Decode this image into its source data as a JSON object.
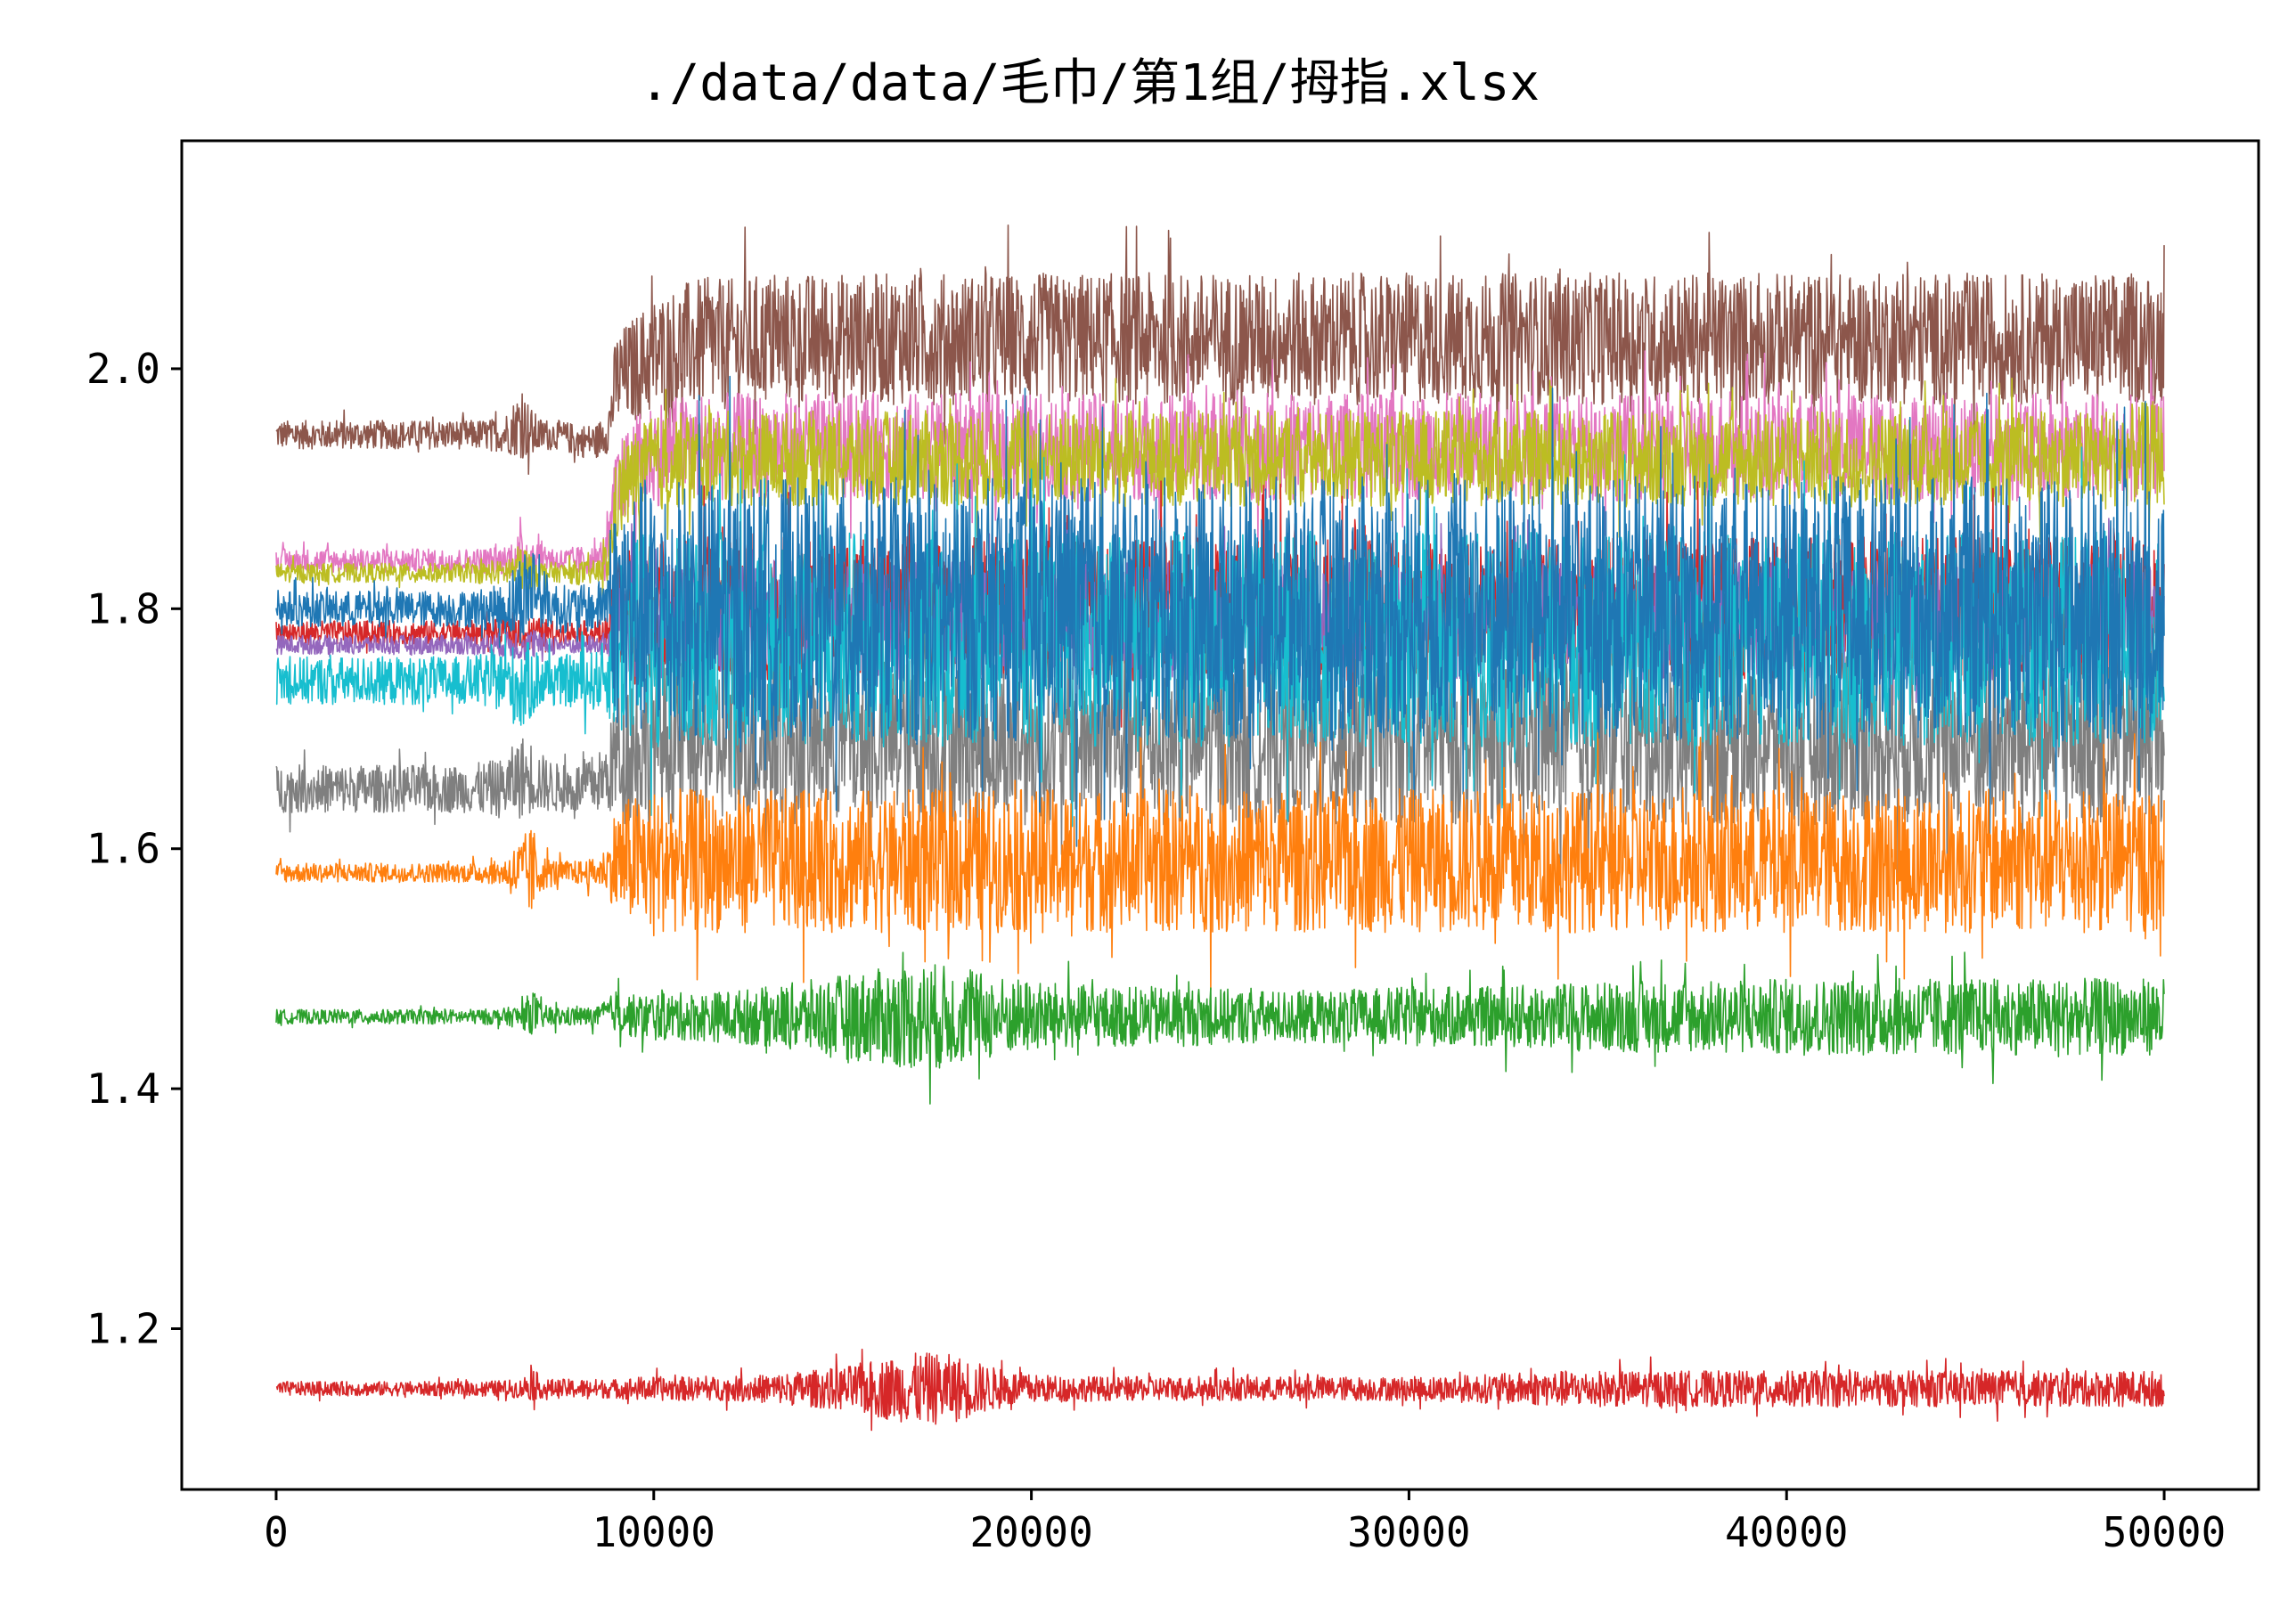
{
  "chart_data": {
    "type": "line",
    "title": "./data/data/毛巾/第1组/拇指.xlsx",
    "xlabel": "",
    "ylabel": "",
    "xlim": [
      -2500,
      52500
    ],
    "ylim": [
      1.066,
      2.19
    ],
    "xticks": [
      0,
      10000,
      20000,
      30000,
      40000,
      50000
    ],
    "xtick_labels": [
      "0",
      "10000",
      "20000",
      "30000",
      "40000",
      "50000"
    ],
    "yticks": [
      1.2,
      1.4,
      1.6,
      1.8,
      2.0
    ],
    "ytick_labels": [
      "1.2",
      "1.4",
      "1.6",
      "1.8",
      "2.0"
    ],
    "grid": false,
    "legend": "none",
    "x": [
      0,
      2500,
      5000,
      6000,
      6500,
      6800,
      7000,
      7500,
      8000,
      8500,
      8800,
      9000,
      9500,
      10000,
      11000,
      12000,
      13000,
      14000,
      15000,
      16000,
      17000,
      17500,
      18000,
      19000,
      20000,
      22000,
      24000,
      26000,
      28000,
      30000,
      32000,
      34000,
      36000,
      38000,
      40000,
      42000,
      44000,
      46000,
      48000,
      50000
    ],
    "series": [
      {
        "color": "#8c564b",
        "center": [
          1.945,
          1.945,
          1.945,
          1.945,
          1.955,
          1.945,
          1.945,
          1.945,
          1.94,
          1.94,
          1.95,
          1.99,
          2.0,
          2.01,
          2.02,
          2.02,
          2.025,
          2.025,
          2.025,
          2.025,
          2.025,
          2.025,
          2.025,
          2.025,
          2.025,
          2.025,
          2.025,
          2.025,
          2.025,
          2.025,
          2.025,
          2.025,
          2.025,
          2.025,
          2.025,
          2.025,
          2.025,
          2.025,
          2.025,
          2.025
        ],
        "amp": [
          0.012,
          0.012,
          0.012,
          0.014,
          0.03,
          0.02,
          0.014,
          0.012,
          0.014,
          0.014,
          0.02,
          0.04,
          0.045,
          0.05,
          0.055,
          0.055,
          0.055,
          0.055,
          0.055,
          0.055,
          0.055,
          0.055,
          0.055,
          0.055,
          0.055,
          0.055,
          0.055,
          0.055,
          0.055,
          0.055,
          0.055,
          0.055,
          0.055,
          0.055,
          0.055,
          0.055,
          0.055,
          0.055,
          0.055,
          0.055
        ]
      },
      {
        "color": "#e377c2",
        "center": [
          1.84,
          1.84,
          1.84,
          1.84,
          1.845,
          1.845,
          1.845,
          1.84,
          1.84,
          1.84,
          1.85,
          1.9,
          1.92,
          1.93,
          1.935,
          1.935,
          1.935,
          1.935,
          1.935,
          1.935,
          1.935,
          1.935,
          1.935,
          1.935,
          1.935,
          1.935,
          1.935,
          1.935,
          1.935,
          1.935,
          1.935,
          1.935,
          1.935,
          1.935,
          1.935,
          1.935,
          1.935,
          1.935,
          1.935,
          1.935
        ],
        "amp": [
          0.01,
          0.01,
          0.01,
          0.012,
          0.02,
          0.016,
          0.012,
          0.01,
          0.012,
          0.012,
          0.02,
          0.035,
          0.04,
          0.045,
          0.045,
          0.045,
          0.045,
          0.045,
          0.045,
          0.045,
          0.045,
          0.045,
          0.045,
          0.045,
          0.045,
          0.045,
          0.045,
          0.045,
          0.045,
          0.045,
          0.045,
          0.045,
          0.045,
          0.045,
          0.045,
          0.045,
          0.045,
          0.045,
          0.045,
          0.045
        ]
      },
      {
        "color": "#bcbd22",
        "center": [
          1.83,
          1.83,
          1.83,
          1.83,
          1.835,
          1.83,
          1.83,
          1.83,
          1.83,
          1.83,
          1.84,
          1.89,
          1.91,
          1.92,
          1.925,
          1.925,
          1.925,
          1.925,
          1.925,
          1.925,
          1.925,
          1.925,
          1.925,
          1.925,
          1.925,
          1.925,
          1.925,
          1.925,
          1.925,
          1.925,
          1.925,
          1.925,
          1.925,
          1.925,
          1.925,
          1.925,
          1.925,
          1.925,
          1.925,
          1.93
        ],
        "amp": [
          0.008,
          0.008,
          0.008,
          0.01,
          0.02,
          0.016,
          0.01,
          0.008,
          0.01,
          0.01,
          0.02,
          0.035,
          0.04,
          0.04,
          0.04,
          0.04,
          0.04,
          0.04,
          0.04,
          0.04,
          0.04,
          0.04,
          0.04,
          0.04,
          0.04,
          0.04,
          0.04,
          0.04,
          0.04,
          0.04,
          0.04,
          0.04,
          0.04,
          0.04,
          0.04,
          0.04,
          0.04,
          0.04,
          0.04,
          0.045
        ]
      },
      {
        "color": "#d62728",
        "center": [
          1.78,
          1.78,
          1.78,
          1.78,
          1.78,
          1.78,
          1.78,
          1.78,
          1.78,
          1.78,
          1.78,
          1.8,
          1.8,
          1.8,
          1.8,
          1.8,
          1.8,
          1.8,
          1.8,
          1.8,
          1.8,
          1.8,
          1.8,
          1.8,
          1.8,
          1.8,
          1.8,
          1.8,
          1.8,
          1.8,
          1.8,
          1.8,
          1.8,
          1.8,
          1.8,
          1.8,
          1.8,
          1.8,
          1.8,
          1.8
        ],
        "amp": [
          0.01,
          0.01,
          0.01,
          0.012,
          0.015,
          0.014,
          0.012,
          0.01,
          0.01,
          0.01,
          0.015,
          0.05,
          0.06,
          0.06,
          0.06,
          0.06,
          0.06,
          0.06,
          0.06,
          0.06,
          0.06,
          0.06,
          0.06,
          0.06,
          0.06,
          0.06,
          0.06,
          0.06,
          0.06,
          0.06,
          0.06,
          0.06,
          0.06,
          0.06,
          0.06,
          0.06,
          0.06,
          0.06,
          0.06,
          0.06
        ]
      },
      {
        "color": "#9467bd",
        "center": [
          1.77,
          1.77,
          1.77,
          1.77,
          1.77,
          1.77,
          1.77,
          1.77,
          1.77,
          1.77,
          1.77,
          1.79,
          1.79,
          1.79,
          1.79,
          1.79,
          1.79,
          1.79,
          1.79,
          1.79,
          1.79,
          1.79,
          1.79,
          1.79,
          1.79,
          1.79,
          1.79,
          1.79,
          1.79,
          1.79,
          1.79,
          1.79,
          1.79,
          1.79,
          1.79,
          1.79,
          1.79,
          1.79,
          1.79,
          1.79
        ],
        "amp": [
          0.008,
          0.008,
          0.008,
          0.01,
          0.014,
          0.012,
          0.01,
          0.008,
          0.008,
          0.008,
          0.012,
          0.04,
          0.05,
          0.05,
          0.05,
          0.05,
          0.05,
          0.05,
          0.05,
          0.05,
          0.05,
          0.05,
          0.05,
          0.05,
          0.05,
          0.05,
          0.05,
          0.05,
          0.05,
          0.05,
          0.05,
          0.05,
          0.05,
          0.05,
          0.05,
          0.05,
          0.05,
          0.05,
          0.05,
          0.05
        ]
      },
      {
        "color": "#7f7f7f",
        "center": [
          1.65,
          1.65,
          1.65,
          1.65,
          1.66,
          1.66,
          1.655,
          1.65,
          1.65,
          1.655,
          1.66,
          1.68,
          1.69,
          1.69,
          1.69,
          1.69,
          1.69,
          1.69,
          1.69,
          1.69,
          1.69,
          1.69,
          1.69,
          1.69,
          1.69,
          1.69,
          1.69,
          1.69,
          1.69,
          1.69,
          1.69,
          1.69,
          1.69,
          1.69,
          1.69,
          1.69,
          1.69,
          1.69,
          1.69,
          1.69
        ],
        "amp": [
          0.02,
          0.02,
          0.02,
          0.025,
          0.035,
          0.03,
          0.025,
          0.02,
          0.022,
          0.025,
          0.03,
          0.06,
          0.07,
          0.07,
          0.07,
          0.07,
          0.07,
          0.07,
          0.07,
          0.07,
          0.07,
          0.07,
          0.07,
          0.07,
          0.07,
          0.07,
          0.07,
          0.07,
          0.07,
          0.07,
          0.07,
          0.07,
          0.07,
          0.07,
          0.07,
          0.07,
          0.07,
          0.07,
          0.07,
          0.07
        ]
      },
      {
        "color": "#17becf",
        "center": [
          1.74,
          1.74,
          1.74,
          1.74,
          1.735,
          1.74,
          1.74,
          1.74,
          1.74,
          1.74,
          1.745,
          1.77,
          1.775,
          1.775,
          1.775,
          1.775,
          1.775,
          1.775,
          1.775,
          1.775,
          1.775,
          1.775,
          1.775,
          1.775,
          1.775,
          1.775,
          1.775,
          1.775,
          1.775,
          1.775,
          1.775,
          1.775,
          1.775,
          1.775,
          1.775,
          1.775,
          1.775,
          1.775,
          1.775,
          1.775
        ],
        "amp": [
          0.02,
          0.02,
          0.02,
          0.025,
          0.04,
          0.03,
          0.025,
          0.02,
          0.025,
          0.025,
          0.035,
          0.08,
          0.09,
          0.09,
          0.09,
          0.09,
          0.09,
          0.09,
          0.09,
          0.09,
          0.09,
          0.09,
          0.09,
          0.09,
          0.09,
          0.09,
          0.09,
          0.09,
          0.09,
          0.09,
          0.09,
          0.09,
          0.09,
          0.09,
          0.09,
          0.09,
          0.09,
          0.09,
          0.09,
          0.09
        ]
      },
      {
        "color": "#1f77b4",
        "center": [
          1.8,
          1.8,
          1.8,
          1.8,
          1.81,
          1.82,
          1.81,
          1.8,
          1.8,
          1.8,
          1.81,
          1.8,
          1.8,
          1.8,
          1.8,
          1.8,
          1.8,
          1.8,
          1.8,
          1.8,
          1.8,
          1.8,
          1.8,
          1.8,
          1.8,
          1.8,
          1.8,
          1.8,
          1.8,
          1.8,
          1.8,
          1.8,
          1.8,
          1.8,
          1.8,
          1.8,
          1.8,
          1.8,
          1.8,
          1.8
        ],
        "amp": [
          0.015,
          0.015,
          0.015,
          0.02,
          0.04,
          0.04,
          0.025,
          0.02,
          0.02,
          0.02,
          0.03,
          0.1,
          0.11,
          0.11,
          0.11,
          0.11,
          0.11,
          0.11,
          0.11,
          0.11,
          0.11,
          0.11,
          0.11,
          0.11,
          0.11,
          0.11,
          0.11,
          0.11,
          0.11,
          0.11,
          0.11,
          0.11,
          0.11,
          0.11,
          0.11,
          0.11,
          0.11,
          0.11,
          0.11,
          0.11
        ]
      },
      {
        "color": "#ff7f0e",
        "center": [
          1.58,
          1.58,
          1.58,
          1.58,
          1.58,
          1.58,
          1.58,
          1.58,
          1.58,
          1.58,
          1.585,
          1.59,
          1.59,
          1.59,
          1.59,
          1.59,
          1.59,
          1.59,
          1.59,
          1.59,
          1.59,
          1.59,
          1.59,
          1.59,
          1.59,
          1.59,
          1.59,
          1.59,
          1.59,
          1.59,
          1.59,
          1.59,
          1.59,
          1.59,
          1.59,
          1.59,
          1.59,
          1.59,
          1.59,
          1.59
        ],
        "amp": [
          0.008,
          0.008,
          0.008,
          0.01,
          0.03,
          0.04,
          0.015,
          0.01,
          0.01,
          0.012,
          0.02,
          0.05,
          0.055,
          0.06,
          0.06,
          0.06,
          0.06,
          0.06,
          0.06,
          0.06,
          0.06,
          0.06,
          0.06,
          0.06,
          0.06,
          0.06,
          0.06,
          0.06,
          0.06,
          0.06,
          0.06,
          0.06,
          0.06,
          0.06,
          0.06,
          0.06,
          0.06,
          0.06,
          0.06,
          0.06
        ]
      },
      {
        "color": "#2ca02c",
        "center": [
          1.46,
          1.46,
          1.46,
          1.46,
          1.46,
          1.465,
          1.46,
          1.46,
          1.46,
          1.46,
          1.465,
          1.465,
          1.46,
          1.46,
          1.46,
          1.46,
          1.46,
          1.46,
          1.46,
          1.46,
          1.46,
          1.46,
          1.46,
          1.46,
          1.46,
          1.46,
          1.46,
          1.46,
          1.46,
          1.46,
          1.46,
          1.46,
          1.46,
          1.46,
          1.46,
          1.46,
          1.46,
          1.46,
          1.46,
          1.46
        ],
        "amp": [
          0.006,
          0.006,
          0.006,
          0.007,
          0.01,
          0.02,
          0.01,
          0.008,
          0.008,
          0.008,
          0.01,
          0.018,
          0.018,
          0.02,
          0.02,
          0.022,
          0.025,
          0.03,
          0.035,
          0.04,
          0.045,
          0.045,
          0.04,
          0.035,
          0.03,
          0.025,
          0.025,
          0.022,
          0.022,
          0.025,
          0.025,
          0.028,
          0.03,
          0.03,
          0.032,
          0.032,
          0.032,
          0.032,
          0.032,
          0.032
        ]
      },
      {
        "color": "#d62728",
        "center": [
          1.15,
          1.15,
          1.15,
          1.15,
          1.15,
          1.155,
          1.15,
          1.15,
          1.15,
          1.15,
          1.15,
          1.15,
          1.15,
          1.15,
          1.15,
          1.15,
          1.15,
          1.15,
          1.15,
          1.15,
          1.15,
          1.15,
          1.15,
          1.15,
          1.15,
          1.15,
          1.15,
          1.15,
          1.15,
          1.15,
          1.15,
          1.15,
          1.15,
          1.15,
          1.15,
          1.15,
          1.15,
          1.15,
          1.15,
          1.15
        ],
        "amp": [
          0.006,
          0.006,
          0.006,
          0.007,
          0.008,
          0.015,
          0.008,
          0.008,
          0.008,
          0.008,
          0.008,
          0.008,
          0.01,
          0.01,
          0.01,
          0.01,
          0.012,
          0.015,
          0.018,
          0.025,
          0.03,
          0.03,
          0.028,
          0.018,
          0.012,
          0.01,
          0.01,
          0.01,
          0.01,
          0.01,
          0.012,
          0.015,
          0.015,
          0.015,
          0.015,
          0.015,
          0.015,
          0.015,
          0.015,
          0.015
        ]
      }
    ]
  }
}
